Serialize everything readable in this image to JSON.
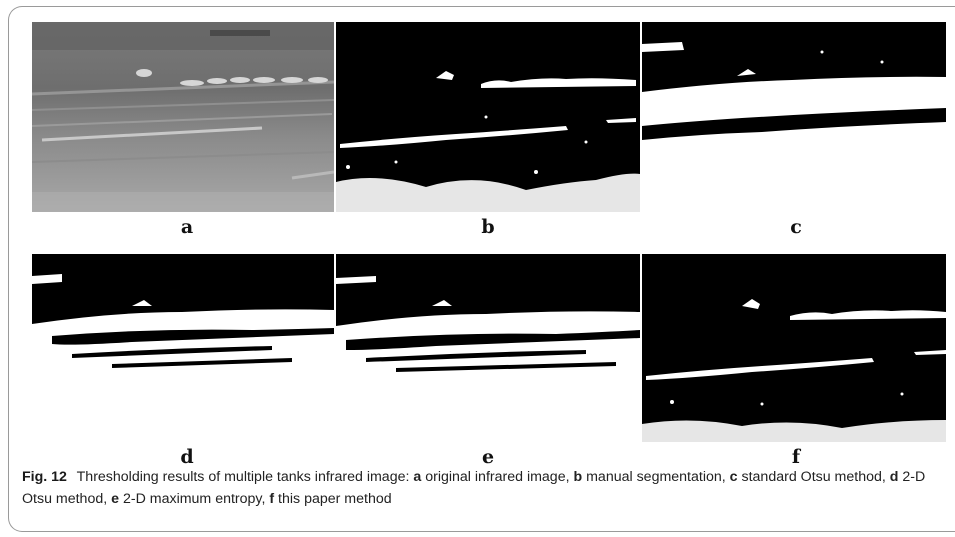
{
  "subfigure_labels": [
    "a",
    "b",
    "c",
    "d",
    "e",
    "f"
  ],
  "caption": {
    "figure_label": "Fig. 12",
    "text_intro": "Thresholding results of multiple tanks infrared image:",
    "items": [
      {
        "letter": "a",
        "desc": "original infrared image"
      },
      {
        "letter": "b",
        "desc": "manual segmentation"
      },
      {
        "letter": "c",
        "desc": "standard Otsu method"
      },
      {
        "letter": "d",
        "desc": "2-D Otsu method"
      },
      {
        "letter": "e",
        "desc": "2-D maximum entropy"
      },
      {
        "letter": "f",
        "desc": "this paper method"
      }
    ]
  }
}
